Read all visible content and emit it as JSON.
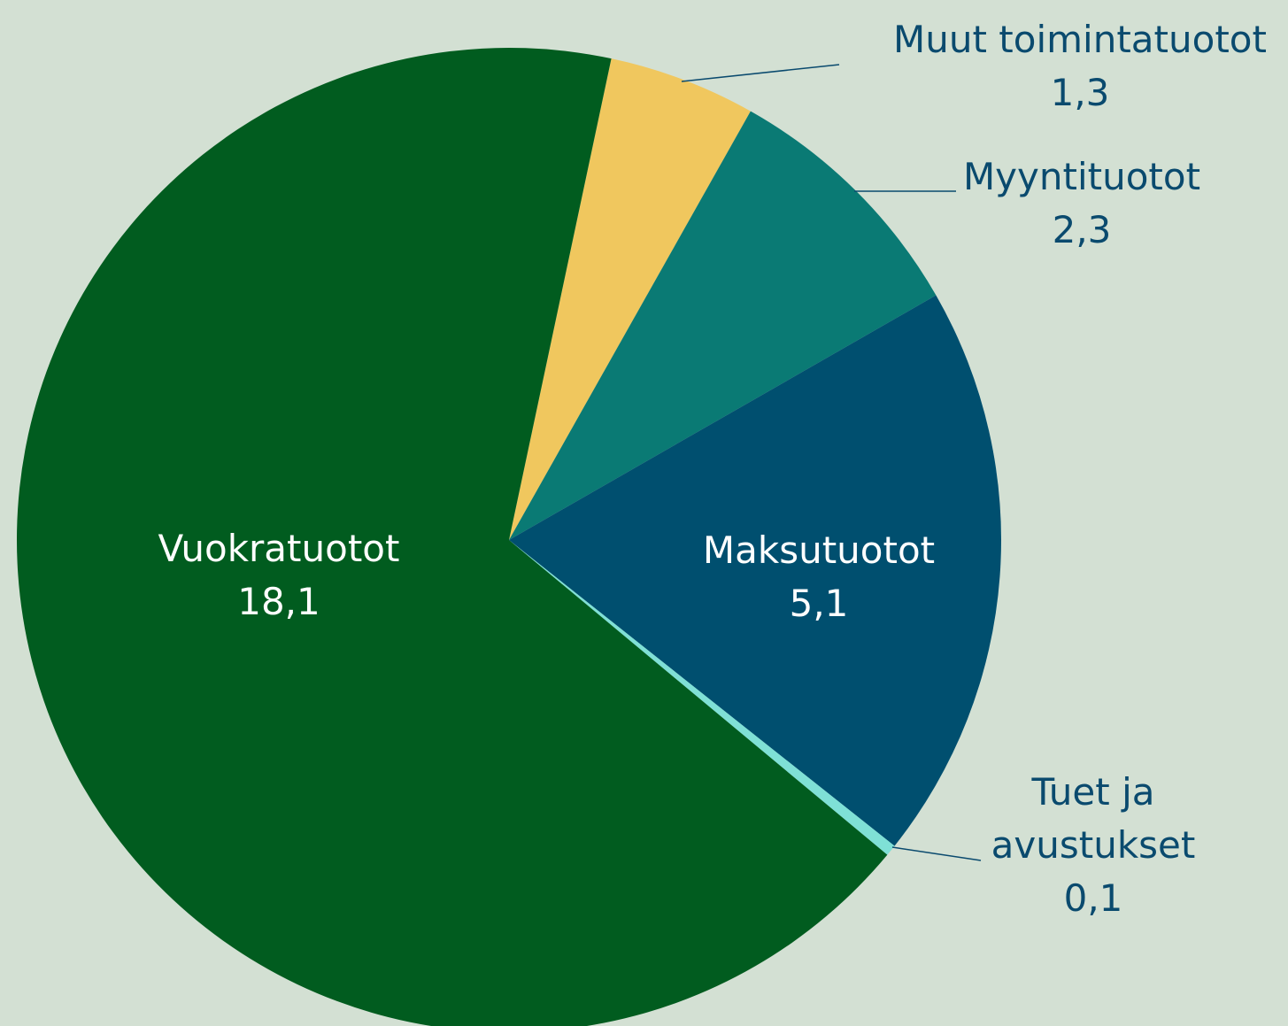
{
  "chart_data": {
    "type": "pie",
    "categories": [
      "Muut toimintatuotot",
      "Myyntituotot",
      "Maksutuotot",
      "Tuet ja avustukset",
      "Vuokratuotot"
    ],
    "values": [
      1.3,
      2.3,
      5.1,
      0.1,
      18.1
    ],
    "value_labels": [
      "1,3",
      "2,3",
      "5,1",
      "0,1",
      "18,1"
    ],
    "colors": [
      "#f0c75e",
      "#0a7a74",
      "#004f6f",
      "#7fe0d6",
      "#015c1f"
    ]
  }
}
